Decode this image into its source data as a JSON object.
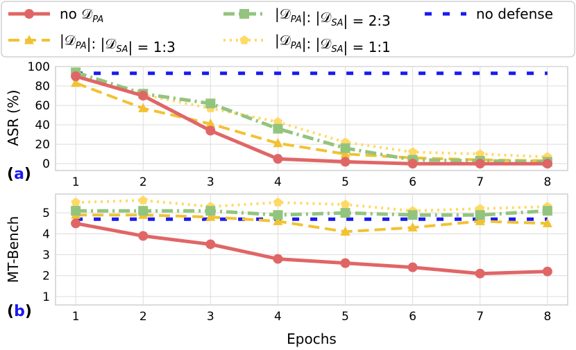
{
  "legend": {
    "items": [
      {
        "label": "no 𝒟",
        "sub": "PA",
        "key": "no_dpa"
      },
      {
        "label": "|𝒟",
        "sub": "PA",
        "label2": "|: |𝒟",
        "sub2": "SA",
        "tail": "| = 2:3",
        "key": "r23"
      },
      {
        "label": "no defense",
        "key": "no_defense"
      },
      {
        "label": "|𝒟",
        "sub": "PA",
        "label2": "|: |𝒟",
        "sub2": "SA",
        "tail": "| = 1:3",
        "key": "r13"
      },
      {
        "label": "|𝒟",
        "sub": "PA",
        "label2": "|: |𝒟",
        "sub2": "SA",
        "tail": "| = 1:1",
        "key": "r11"
      }
    ]
  },
  "chart_data": [
    {
      "type": "line",
      "panel_tag": "(a)",
      "tag_parts": {
        "open": "(",
        "letter": "a",
        "close": ")"
      },
      "ylabel": "ASR (%)",
      "xlabel": "",
      "x": [
        1,
        2,
        3,
        4,
        5,
        6,
        7,
        8
      ],
      "ylim": [
        -7,
        100
      ],
      "yticks": [
        0,
        20,
        40,
        60,
        80,
        100
      ],
      "grid": true,
      "series": [
        {
          "name": "no defense",
          "key": "no_defense",
          "values": [
            93,
            93,
            93,
            93,
            93,
            93,
            93,
            93
          ]
        },
        {
          "name": "|D_PA|: |D_SA| = 1:3",
          "key": "r13",
          "values": [
            83,
            57,
            41,
            21,
            10,
            6,
            4,
            3
          ]
        },
        {
          "name": "|D_PA|: |D_SA| = 1:1",
          "key": "r11",
          "values": [
            89,
            71,
            57,
            43,
            22,
            12,
            10,
            7
          ]
        },
        {
          "name": "|D_PA|: |D_SA| = 2:3",
          "key": "r23",
          "values": [
            94,
            72,
            62,
            36,
            16,
            4,
            3,
            2
          ]
        },
        {
          "name": "no D_PA",
          "key": "no_dpa",
          "values": [
            90,
            70,
            34,
            5,
            2,
            0,
            0,
            0
          ]
        }
      ]
    },
    {
      "type": "line",
      "panel_tag": "(b)",
      "tag_parts": {
        "open": "(",
        "letter": "b",
        "close": ")"
      },
      "ylabel": "MT-Bench",
      "xlabel": "Epochs",
      "x": [
        1,
        2,
        3,
        4,
        5,
        6,
        7,
        8
      ],
      "ylim": [
        0.6,
        5.9
      ],
      "yticks": [
        1,
        2,
        3,
        4,
        5
      ],
      "grid": true,
      "series": [
        {
          "name": "no defense",
          "key": "no_defense",
          "values": [
            4.7,
            4.7,
            4.7,
            4.7,
            4.7,
            4.7,
            4.7,
            4.7
          ]
        },
        {
          "name": "|D_PA|: |D_SA| = 1:3",
          "key": "r13",
          "values": [
            4.9,
            4.9,
            4.8,
            4.6,
            4.1,
            4.3,
            4.6,
            4.5
          ]
        },
        {
          "name": "|D_PA|: |D_SA| = 1:1",
          "key": "r11",
          "values": [
            5.5,
            5.6,
            5.3,
            5.5,
            5.4,
            5.1,
            5.2,
            5.3
          ]
        },
        {
          "name": "|D_PA|: |D_SA| = 2:3",
          "key": "r23",
          "values": [
            5.1,
            5.1,
            5.1,
            4.9,
            5.0,
            4.9,
            4.9,
            5.1
          ]
        },
        {
          "name": "no D_PA",
          "key": "no_dpa",
          "values": [
            4.5,
            3.9,
            3.5,
            2.8,
            2.6,
            2.4,
            2.1,
            2.2
          ]
        }
      ]
    }
  ],
  "styles": {
    "no_dpa": {
      "color": "#e06666",
      "dash": "",
      "marker": "circle",
      "width": 5
    },
    "r13": {
      "color": "#f1c232",
      "dash": "16 8",
      "marker": "triangle",
      "width": 4
    },
    "r23": {
      "color": "#93c47d",
      "dash": "16 6 3 6",
      "marker": "square",
      "width": 5
    },
    "r11": {
      "color": "#ffd966",
      "dash": "3 6",
      "marker": "pentagon",
      "width": 4
    },
    "no_defense": {
      "color": "#1a1aee",
      "dash": "10 16",
      "marker": "none",
      "width": 5
    },
    "tag_color": "#1a1aee"
  }
}
